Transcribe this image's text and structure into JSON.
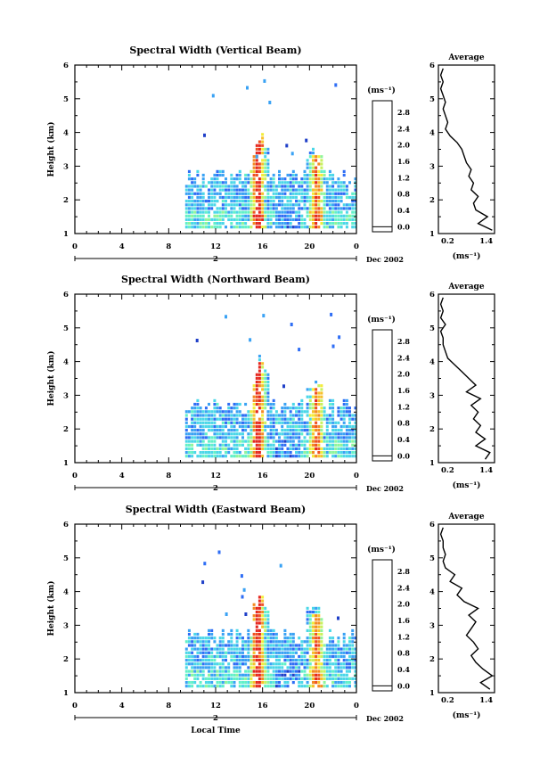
{
  "colors": {
    "scale": [
      "#2b2f7e",
      "#1f3fc8",
      "#2f6ef5",
      "#3aa2f4",
      "#4bd7e8",
      "#62f0c8",
      "#8ff59b",
      "#c8f25f",
      "#f4ec3a",
      "#f7c02b",
      "#f48a23",
      "#ef5221",
      "#e5271e"
    ],
    "line": "#000000",
    "background": "#ffffff"
  },
  "chart_data": [
    {
      "type": "heatmap",
      "title": "Spectral Width (Vertical Beam)",
      "ylabel": "Height (km)",
      "xlabel": "",
      "xlim": [
        0,
        24
      ],
      "ylim": [
        1,
        6
      ],
      "xticks": [
        "0",
        "4",
        "8",
        "12",
        "16",
        "20",
        "0"
      ],
      "yticks": [
        "1",
        "2",
        "3",
        "4",
        "5",
        "6"
      ],
      "date_label": "2",
      "date_suffix": "Dec 2002",
      "colorbar": {
        "unit": "(ms⁻¹)",
        "ticks": [
          "0.0",
          "0.4",
          "0.8",
          "1.2",
          "1.6",
          "2.0",
          "2.4",
          "2.8"
        ],
        "range": [
          0,
          2.9
        ]
      },
      "average": {
        "title": "Average",
        "xlim": [
          0.2,
          1.4
        ],
        "xticks": [
          "0.2",
          "1.4"
        ],
        "yticks": [
          "1",
          "2",
          "3",
          "4",
          "5",
          "6"
        ],
        "xlabel": "(ms⁻¹)",
        "height": [
          1.1,
          1.3,
          1.5,
          1.7,
          1.9,
          2.1,
          2.3,
          2.5,
          2.7,
          2.9,
          3.1,
          3.3,
          3.5,
          3.7,
          3.9,
          4.1,
          4.3,
          4.5,
          4.7,
          4.9,
          5.1,
          5.3,
          5.5,
          5.7,
          5.9
        ],
        "width": [
          1.35,
          1.05,
          1.25,
          1.0,
          0.95,
          1.05,
          0.9,
          0.95,
          0.85,
          0.9,
          0.8,
          0.75,
          0.7,
          0.6,
          0.45,
          0.35,
          0.4,
          0.35,
          0.3,
          0.35,
          0.3,
          0.25,
          0.3,
          0.25,
          0.3
        ]
      }
    },
    {
      "type": "heatmap",
      "title": "Spectral Width (Northward Beam)",
      "ylabel": "Height (km)",
      "xlabel": "",
      "xlim": [
        0,
        24
      ],
      "ylim": [
        1,
        6
      ],
      "xticks": [
        "0",
        "4",
        "8",
        "12",
        "16",
        "20",
        "0"
      ],
      "yticks": [
        "1",
        "2",
        "3",
        "4",
        "5",
        "6"
      ],
      "date_label": "2",
      "date_suffix": "Dec 2002",
      "colorbar": {
        "unit": "(ms⁻¹)",
        "ticks": [
          "0.0",
          "0.4",
          "0.8",
          "1.2",
          "1.6",
          "2.0",
          "2.4",
          "2.8"
        ],
        "range": [
          0,
          2.9
        ]
      },
      "average": {
        "title": "Average",
        "xlim": [
          0.2,
          1.4
        ],
        "xticks": [
          "0.2",
          "1.4"
        ],
        "yticks": [
          "1",
          "2",
          "3",
          "4",
          "5",
          "6"
        ],
        "xlabel": "(ms⁻¹)",
        "height": [
          1.1,
          1.3,
          1.5,
          1.7,
          1.9,
          2.1,
          2.3,
          2.5,
          2.7,
          2.9,
          3.1,
          3.3,
          3.5,
          3.7,
          3.9,
          4.1,
          4.3,
          4.5,
          4.7,
          4.9,
          5.1,
          5.3,
          5.5,
          5.7,
          5.9
        ],
        "width": [
          1.2,
          1.3,
          1.0,
          1.2,
          1.0,
          1.1,
          0.95,
          1.05,
          0.9,
          1.1,
          0.8,
          1.0,
          0.85,
          0.7,
          0.55,
          0.4,
          0.35,
          0.3,
          0.3,
          0.25,
          0.35,
          0.25,
          0.3,
          0.25,
          0.3
        ]
      }
    },
    {
      "type": "heatmap",
      "title": "Spectral Width (Eastward Beam)",
      "ylabel": "Height (km)",
      "xlabel": "Local Time",
      "xlim": [
        0,
        24
      ],
      "ylim": [
        1,
        6
      ],
      "xticks": [
        "0",
        "4",
        "8",
        "12",
        "16",
        "20",
        "0"
      ],
      "yticks": [
        "1",
        "2",
        "3",
        "4",
        "5",
        "6"
      ],
      "date_label": "2",
      "date_suffix": "Dec 2002",
      "colorbar": {
        "unit": "(ms⁻¹)",
        "ticks": [
          "0.0",
          "0.4",
          "0.8",
          "1.2",
          "1.6",
          "2.0",
          "2.4",
          "2.8"
        ],
        "range": [
          0,
          2.9
        ]
      },
      "average": {
        "title": "Average",
        "xlim": [
          0.2,
          1.4
        ],
        "xticks": [
          "0.2",
          "1.4"
        ],
        "yticks": [
          "1",
          "2",
          "3",
          "4",
          "5",
          "6"
        ],
        "xlabel": "(ms⁻¹)",
        "height": [
          1.1,
          1.3,
          1.5,
          1.7,
          1.9,
          2.1,
          2.3,
          2.5,
          2.7,
          2.9,
          3.1,
          3.3,
          3.5,
          3.7,
          3.9,
          4.1,
          4.3,
          4.5,
          4.7,
          4.9,
          5.1,
          5.3,
          5.5,
          5.7,
          5.9
        ],
        "width": [
          1.3,
          1.1,
          1.35,
          1.15,
          1.0,
          0.9,
          1.05,
          0.95,
          0.8,
          0.9,
          1.0,
          0.85,
          1.05,
          0.75,
          0.6,
          0.7,
          0.45,
          0.55,
          0.35,
          0.3,
          0.35,
          0.3,
          0.3,
          0.25,
          0.3
        ]
      }
    }
  ]
}
